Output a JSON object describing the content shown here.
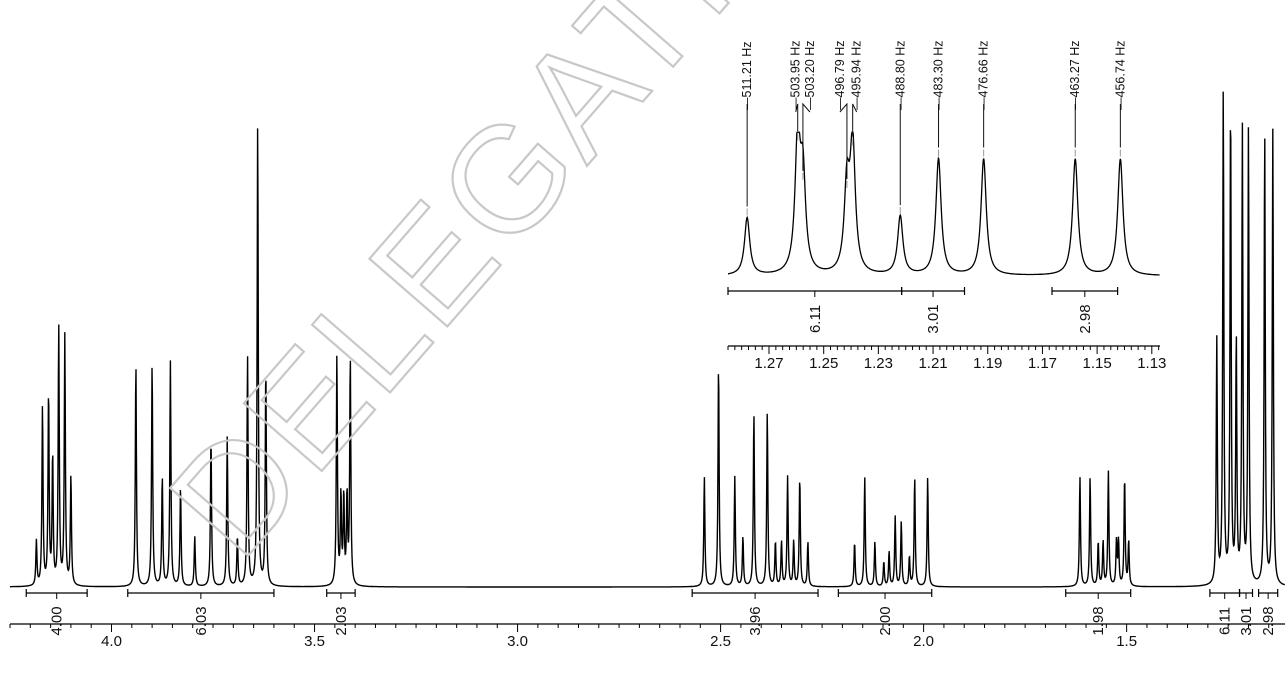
{
  "watermark": "DELEGATION",
  "chart_data": [
    {
      "type": "line",
      "xlim": [
        4.25,
        1.11
      ],
      "ticks": [
        {
          "value": 4.0,
          "label": "4.0"
        },
        {
          "value": 3.5,
          "label": "3.5"
        },
        {
          "value": 3.0,
          "label": "3.0"
        },
        {
          "value": 2.5,
          "label": "2.5"
        },
        {
          "value": 2.0,
          "label": "2.0"
        },
        {
          "value": 1.5,
          "label": "1.5"
        }
      ],
      "peaks": [
        {
          "ppm": 4.185,
          "h": 0.09
        },
        {
          "ppm": 4.17,
          "h": 0.36
        },
        {
          "ppm": 4.155,
          "h": 0.39
        },
        {
          "ppm": 4.145,
          "h": 0.26
        },
        {
          "ppm": 4.13,
          "h": 0.52
        },
        {
          "ppm": 4.115,
          "h": 0.5
        },
        {
          "ppm": 4.1,
          "h": 0.22
        },
        {
          "ppm": 3.94,
          "h": 0.45
        },
        {
          "ppm": 3.9,
          "h": 0.45
        },
        {
          "ppm": 3.875,
          "h": 0.22
        },
        {
          "ppm": 3.855,
          "h": 0.45
        },
        {
          "ppm": 3.83,
          "h": 0.2
        },
        {
          "ppm": 3.795,
          "h": 0.1
        },
        {
          "ppm": 3.755,
          "h": 0.3
        },
        {
          "ppm": 3.715,
          "h": 0.3
        },
        {
          "ppm": 3.69,
          "h": 0.1
        },
        {
          "ppm": 3.665,
          "h": 0.46
        },
        {
          "ppm": 3.64,
          "h": 0.93
        },
        {
          "ppm": 3.62,
          "h": 0.44
        },
        {
          "ppm": 3.445,
          "h": 0.46
        },
        {
          "ppm": 3.435,
          "h": 0.18
        },
        {
          "ppm": 3.428,
          "h": 0.18
        },
        {
          "ppm": 3.42,
          "h": 0.18
        },
        {
          "ppm": 3.412,
          "h": 0.46
        },
        {
          "ppm": 2.54,
          "h": 0.22
        },
        {
          "ppm": 2.505,
          "h": 0.45
        },
        {
          "ppm": 2.465,
          "h": 0.22
        },
        {
          "ppm": 2.445,
          "h": 0.1
        },
        {
          "ppm": 2.418,
          "h": 0.35
        },
        {
          "ppm": 2.385,
          "h": 0.35
        },
        {
          "ppm": 2.365,
          "h": 0.09
        },
        {
          "ppm": 2.35,
          "h": 0.09
        },
        {
          "ppm": 2.335,
          "h": 0.22
        },
        {
          "ppm": 2.32,
          "h": 0.09
        },
        {
          "ppm": 2.305,
          "h": 0.22
        },
        {
          "ppm": 2.285,
          "h": 0.09
        },
        {
          "ppm": 2.17,
          "h": 0.09
        },
        {
          "ppm": 2.145,
          "h": 0.22
        },
        {
          "ppm": 2.12,
          "h": 0.09
        },
        {
          "ppm": 2.098,
          "h": 0.05
        },
        {
          "ppm": 2.085,
          "h": 0.07
        },
        {
          "ppm": 2.07,
          "h": 0.14
        },
        {
          "ppm": 2.055,
          "h": 0.13
        },
        {
          "ppm": 2.035,
          "h": 0.06
        },
        {
          "ppm": 2.022,
          "h": 0.22
        },
        {
          "ppm": 1.99,
          "h": 0.22
        },
        {
          "ppm": 1.615,
          "h": 0.22
        },
        {
          "ppm": 1.59,
          "h": 0.22
        },
        {
          "ppm": 1.57,
          "h": 0.09
        },
        {
          "ppm": 1.558,
          "h": 0.09
        },
        {
          "ppm": 1.545,
          "h": 0.23
        },
        {
          "ppm": 1.525,
          "h": 0.09
        },
        {
          "ppm": 1.52,
          "h": 0.09
        },
        {
          "ppm": 1.505,
          "h": 0.22
        },
        {
          "ppm": 1.495,
          "h": 0.09
        },
        {
          "ppm": 1.278,
          "h": 0.49
        },
        {
          "ppm": 1.262,
          "h": 0.99
        },
        {
          "ppm": 1.244,
          "h": 0.97
        },
        {
          "ppm": 1.23,
          "h": 0.49
        },
        {
          "ppm": 1.215,
          "h": 0.91
        },
        {
          "ppm": 1.2,
          "h": 0.91
        },
        {
          "ppm": 1.16,
          "h": 0.91
        },
        {
          "ppm": 1.14,
          "h": 0.91
        }
      ],
      "integrals": [
        {
          "from": 4.21,
          "to": 4.06,
          "label": "4.00"
        },
        {
          "from": 3.96,
          "to": 3.6,
          "label": "6.03"
        },
        {
          "from": 3.47,
          "to": 3.4,
          "label": "2.03"
        },
        {
          "from": 2.57,
          "to": 2.26,
          "label": "3.96"
        },
        {
          "from": 2.21,
          "to": 1.98,
          "label": "2.00"
        },
        {
          "from": 1.65,
          "to": 1.49,
          "label": "1.98"
        },
        {
          "from": 1.295,
          "to": 1.222,
          "label": "6.11"
        },
        {
          "from": 1.222,
          "to": 1.19,
          "label": "3.01"
        },
        {
          "from": 1.175,
          "to": 1.128,
          "label": "2.98"
        }
      ]
    },
    {
      "type": "line",
      "xlim": [
        1.285,
        1.127
      ],
      "ticks": [
        {
          "value": 1.27,
          "label": "1.27"
        },
        {
          "value": 1.25,
          "label": "1.25"
        },
        {
          "value": 1.23,
          "label": "1.23"
        },
        {
          "value": 1.21,
          "label": "1.21"
        },
        {
          "value": 1.19,
          "label": "1.19"
        },
        {
          "value": 1.17,
          "label": "1.17"
        },
        {
          "value": 1.15,
          "label": "1.15"
        },
        {
          "value": 1.13,
          "label": "1.13"
        }
      ],
      "peaks": [
        {
          "ppm": 1.278,
          "h": 0.42,
          "label": "511.21 Hz"
        },
        {
          "ppm": 1.2595,
          "h": 0.97,
          "label": "503.95 Hz"
        },
        {
          "ppm": 1.2576,
          "h": 0.68,
          "label": "503.20 Hz"
        },
        {
          "ppm": 1.2415,
          "h": 0.62,
          "label": "496.79 Hz"
        },
        {
          "ppm": 1.2394,
          "h": 0.93,
          "label": "495.94 Hz"
        },
        {
          "ppm": 1.222,
          "h": 0.43,
          "label": "488.80 Hz"
        },
        {
          "ppm": 1.208,
          "h": 0.85,
          "label": "483.30 Hz"
        },
        {
          "ppm": 1.1915,
          "h": 0.85,
          "label": "476.66 Hz"
        },
        {
          "ppm": 1.158,
          "h": 0.85,
          "label": "463.27 Hz"
        },
        {
          "ppm": 1.1415,
          "h": 0.85,
          "label": "456.74 Hz"
        }
      ],
      "integrals": [
        {
          "from": 1.285,
          "to": 1.2215,
          "label": "6.11"
        },
        {
          "from": 1.2215,
          "to": 1.1985,
          "label": "3.01"
        },
        {
          "from": 1.1665,
          "to": 1.1425,
          "label": "2.98"
        }
      ]
    }
  ]
}
